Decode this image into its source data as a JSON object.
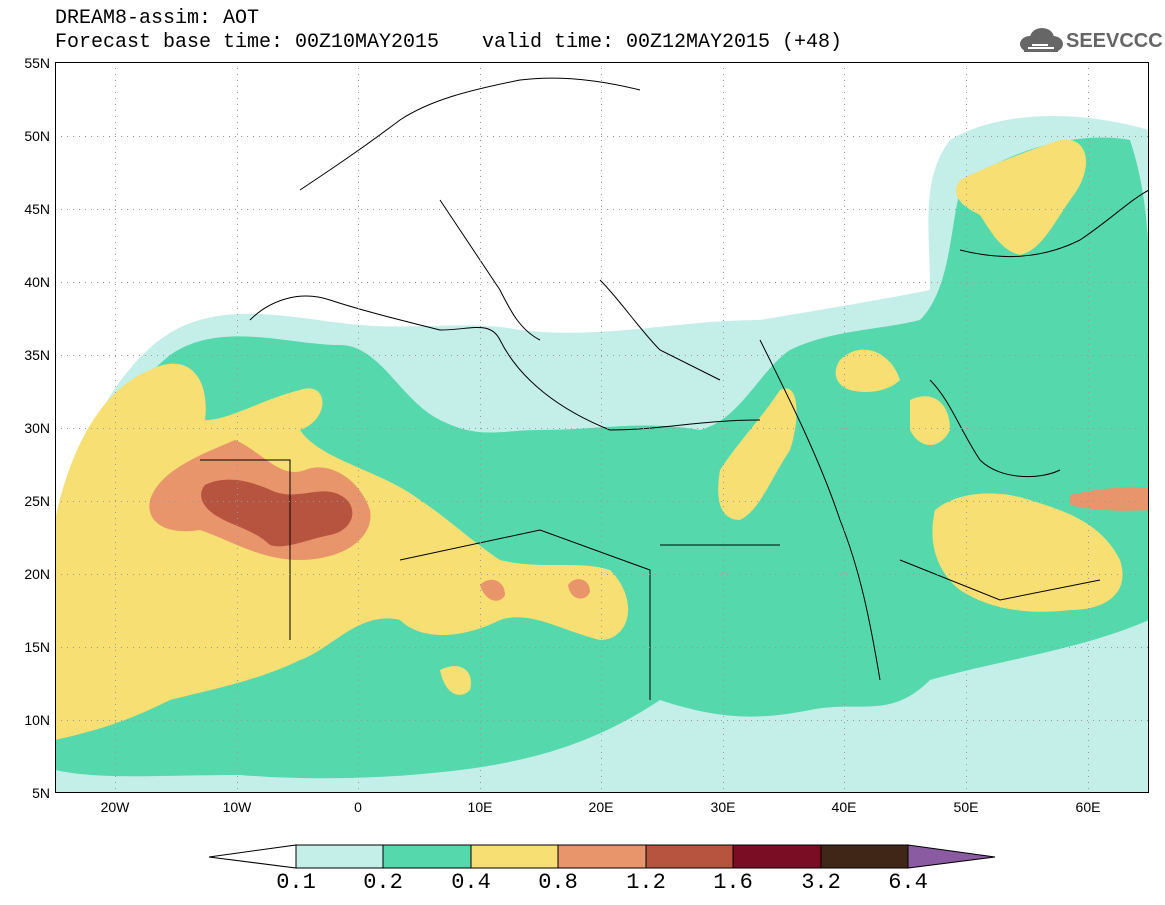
{
  "header": {
    "title": "DREAM8-assim: AOT",
    "base_time": "Forecast base time: 00Z10MAY2015",
    "valid_time": "valid time: 00Z12MAY2015 (+48)"
  },
  "logo": {
    "text": "SEEVCCC",
    "icon": "cloud-icon"
  },
  "map": {
    "projection": "lat-lon",
    "lon_range": [
      -25,
      65
    ],
    "lat_range": [
      5,
      55
    ],
    "lat_labels": [
      "5N",
      "10N",
      "15N",
      "20N",
      "25N",
      "30N",
      "35N",
      "40N",
      "45N",
      "50N",
      "55N"
    ],
    "lon_labels": [
      "20W",
      "10W",
      "0",
      "10E",
      "20E",
      "30E",
      "40E",
      "50E",
      "60E"
    ],
    "gridlines": true
  },
  "colorbar": {
    "labels": [
      "0.1",
      "0.2",
      "0.4",
      "0.8",
      "1.2",
      "1.6",
      "3.2",
      "6.4"
    ],
    "colors": [
      "#ffffff",
      "#c4eee8",
      "#55d9ac",
      "#f7df73",
      "#e9956b",
      "#b6543f",
      "#7a0d23",
      "#3f2616",
      "#8a5ba0"
    ]
  },
  "field_colors": {
    "c02": "#c4eee8",
    "c04": "#55d9ac",
    "c08": "#f7df73",
    "c12": "#e9956b",
    "c16": "#b6543f"
  }
}
